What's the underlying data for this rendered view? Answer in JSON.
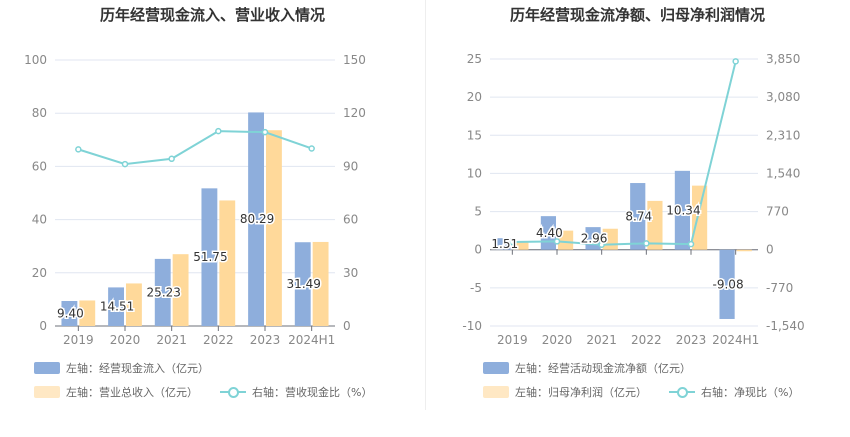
{
  "colors": {
    "bar1": "#8eaedc",
    "bar2": "#ffd99a",
    "line": "#7fd3d6"
  },
  "chart_data": [
    {
      "type": "bar+line",
      "title": "历年经营现金流入、营业收入情况",
      "categories": [
        "2019",
        "2020",
        "2021",
        "2022",
        "2023",
        "2024H1"
      ],
      "yleft": {
        "range": [
          0,
          100
        ],
        "ticks": [
          "0",
          "20",
          "40",
          "60",
          "80",
          "100"
        ]
      },
      "yright": {
        "range": [
          0,
          150
        ],
        "ticks": [
          "0",
          "30",
          "60",
          "90",
          "120",
          "150"
        ]
      },
      "series": [
        {
          "name": "左轴：经营现金流入（亿元）",
          "type": "bar",
          "axis": "left",
          "values": [
            9.4,
            14.51,
            25.23,
            51.75,
            80.29,
            31.49
          ],
          "labels": [
            "9.40",
            "14.51",
            "25.23",
            "51.75",
            "80.29",
            "31.49"
          ]
        },
        {
          "name": "左轴：营业总收入（亿元）",
          "type": "bar",
          "axis": "left",
          "values": [
            9.6,
            16.0,
            27.0,
            47.2,
            73.6,
            31.6
          ]
        },
        {
          "name": "右轴：营收现金比（%）",
          "type": "line",
          "axis": "right",
          "values": [
            99.6,
            91.3,
            94.3,
            109.9,
            109.3,
            100.1
          ]
        }
      ],
      "grid": true,
      "legend": "bottom"
    },
    {
      "type": "bar+line",
      "title": "历年经营现金流净额、归母净利润情况",
      "categories": [
        "2019",
        "2020",
        "2021",
        "2022",
        "2023",
        "2024H1"
      ],
      "yleft": {
        "range": [
          -10,
          25
        ],
        "ticks": [
          "-10",
          "-5",
          "0",
          "5",
          "10",
          "15",
          "20",
          "25"
        ]
      },
      "yright": {
        "range": [
          -1540,
          3850
        ],
        "ticks": [
          "-1,540",
          "-770",
          "0",
          "770",
          "1,540",
          "2,310",
          "3,080",
          "3,850"
        ]
      },
      "series": [
        {
          "name": "左轴：经营活动现金流净额（亿元）",
          "type": "bar",
          "axis": "left",
          "values": [
            1.51,
            4.4,
            2.96,
            8.74,
            10.34,
            -9.08
          ],
          "labels": [
            "1.51",
            "4.40",
            "2.96",
            "8.74",
            "10.34",
            "-9.08"
          ]
        },
        {
          "name": "左轴：归母净利润（亿元）",
          "type": "bar",
          "axis": "left",
          "values": [
            1.0,
            2.5,
            2.75,
            6.4,
            8.4,
            -0.2
          ]
        },
        {
          "name": "右轴：净现比（%）",
          "type": "line",
          "axis": "right",
          "values": [
            155,
            168,
            101,
            128,
            114,
            3803
          ]
        }
      ],
      "grid": true,
      "legend": "bottom"
    }
  ]
}
